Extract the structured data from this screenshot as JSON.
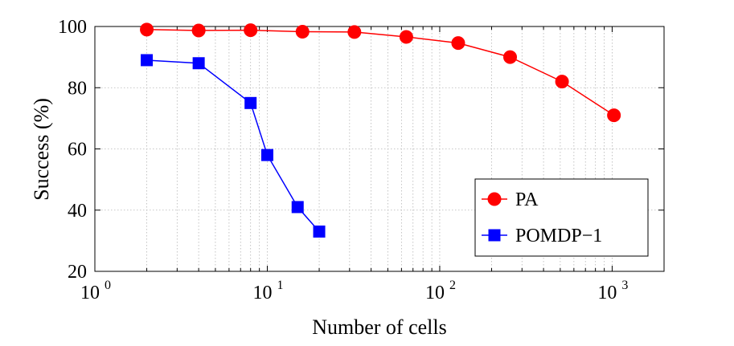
{
  "chart_data": {
    "type": "line",
    "title": "",
    "xlabel": "Number of cells",
    "ylabel": "Success (%)",
    "xscale": "log",
    "xlim": [
      1,
      2000
    ],
    "ylim": [
      20,
      100
    ],
    "x_ticks": [
      {
        "value": 1,
        "base": "10",
        "exp": "0"
      },
      {
        "value": 10,
        "base": "10",
        "exp": "1"
      },
      {
        "value": 100,
        "base": "10",
        "exp": "2"
      },
      {
        "value": 1000,
        "base": "10",
        "exp": "3"
      }
    ],
    "y_ticks": [
      20,
      40,
      60,
      80,
      100
    ],
    "grid": true,
    "legend_position": "lower-right",
    "series": [
      {
        "name": "PA",
        "color": "#ff0000",
        "marker": "circle",
        "x": [
          2,
          4,
          8,
          16,
          32,
          64,
          128,
          256,
          512,
          1024
        ],
        "y": [
          99,
          98.7,
          98.8,
          98.3,
          98.2,
          96.6,
          94.6,
          90,
          82,
          71
        ]
      },
      {
        "name": "POMDP−1",
        "color": "#0000ff",
        "marker": "square",
        "x": [
          2,
          4,
          8,
          10,
          15,
          20
        ],
        "y": [
          89,
          88,
          75,
          58,
          41,
          33
        ]
      }
    ]
  }
}
